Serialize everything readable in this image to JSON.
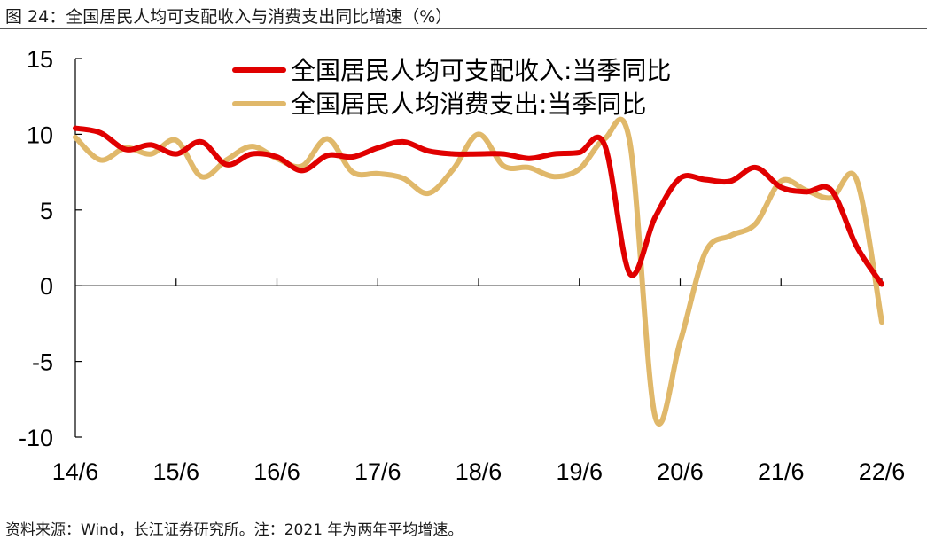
{
  "figure": {
    "title": "图 24：全国居民人均可支配收入与消费支出同比增速（%）",
    "source": "资料来源：Wind，长江证券研究所。注：2021 年为两年平均增速。"
  },
  "colors": {
    "income": "#e00000",
    "consumption": "#e0b86a",
    "axis": "#000000"
  },
  "chart_data": {
    "type": "line",
    "xlabel": "",
    "ylabel": "",
    "ylim": [
      -10,
      15
    ],
    "yticks": [
      -10,
      -5,
      0,
      5,
      10,
      15
    ],
    "x_range": [
      0,
      32
    ],
    "x_tick_positions": [
      0,
      4,
      8,
      12,
      16,
      20,
      24,
      28,
      32
    ],
    "x_tick_labels": [
      "14/6",
      "15/6",
      "16/6",
      "17/6",
      "18/6",
      "19/6",
      "20/6",
      "21/6",
      "22/6"
    ],
    "grid": false,
    "legend_position": "top-center",
    "x": [
      0,
      1,
      2,
      3,
      4,
      5,
      6,
      7,
      8,
      9,
      10,
      11,
      12,
      13,
      14,
      15,
      16,
      17,
      18,
      19,
      20,
      21,
      22,
      23,
      24,
      25,
      26,
      27,
      28,
      29,
      30,
      31,
      32
    ],
    "series": [
      {
        "name": "全国居民人均可支配收入:当季同比",
        "values": [
          10.4,
          10.1,
          9.0,
          9.3,
          8.7,
          9.5,
          8.0,
          8.7,
          8.5,
          7.6,
          8.6,
          8.5,
          9.1,
          9.5,
          8.9,
          8.7,
          8.7,
          8.7,
          8.4,
          8.7,
          8.8,
          9.3,
          0.8,
          4.5,
          7.1,
          7.0,
          6.9,
          7.8,
          6.5,
          6.2,
          6.3,
          2.6,
          0.1
        ]
      },
      {
        "name": "全国居民人均消费支出:当季同比",
        "values": [
          9.8,
          8.3,
          9.1,
          8.7,
          9.6,
          7.2,
          8.3,
          9.2,
          8.4,
          7.9,
          9.7,
          7.5,
          7.4,
          7.1,
          6.1,
          7.7,
          10.0,
          7.9,
          7.8,
          7.2,
          7.7,
          9.7,
          9.5,
          -8.6,
          -3.7,
          2.2,
          3.3,
          4.1,
          6.9,
          6.3,
          5.8,
          7.0,
          -2.4
        ]
      }
    ]
  }
}
